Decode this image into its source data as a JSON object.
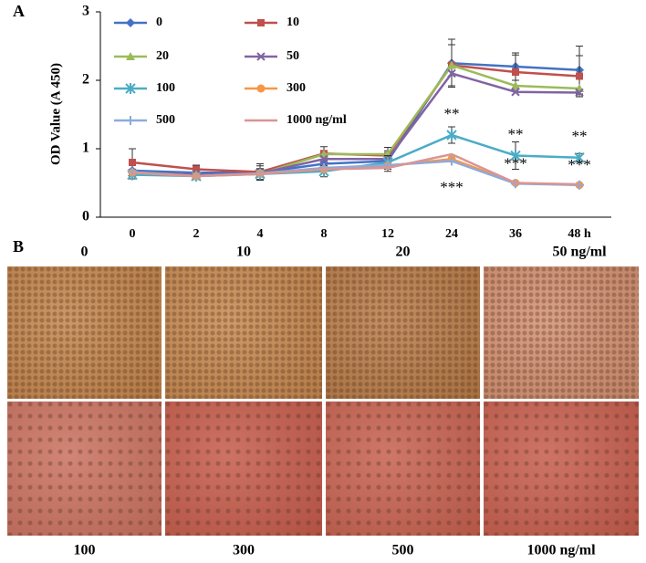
{
  "figure": {
    "panel_a": "A",
    "panel_b": "B"
  },
  "chart_data": {
    "type": "line",
    "y_label": "OD Value (A 450)",
    "categories": [
      "0",
      "2",
      "4",
      "8",
      "12",
      "24",
      "36",
      "48 h"
    ],
    "ylim": [
      0,
      3
    ],
    "yticks": [
      0,
      1,
      2,
      3
    ],
    "series": [
      {
        "name": "0",
        "color": "#4472c4",
        "marker": "diamond",
        "values": [
          0.68,
          0.65,
          0.65,
          0.78,
          0.82,
          2.25,
          2.2,
          2.15
        ],
        "errors": [
          0.08,
          0.06,
          0.1,
          0.1,
          0.15,
          0.35,
          0.2,
          0.35
        ]
      },
      {
        "name": "10",
        "color": "#c0504d",
        "marker": "square",
        "values": [
          0.8,
          0.7,
          0.66,
          0.93,
          0.9,
          2.22,
          2.12,
          2.06
        ],
        "errors": [
          0.2,
          0.06,
          0.12,
          0.1,
          0.12,
          0.3,
          0.25,
          0.3
        ]
      },
      {
        "name": "20",
        "color": "#9bbb59",
        "marker": "triangle",
        "values": [
          0.65,
          0.62,
          0.63,
          0.92,
          0.92,
          2.22,
          1.92,
          1.88
        ]
      },
      {
        "name": "50",
        "color": "#8064a2",
        "marker": "x",
        "values": [
          0.65,
          0.62,
          0.64,
          0.85,
          0.85,
          2.1,
          1.83,
          1.82
        ]
      },
      {
        "name": "100",
        "color": "#4bacc6",
        "marker": "star",
        "values": [
          0.62,
          0.6,
          0.63,
          0.67,
          0.8,
          1.2,
          0.9,
          0.87
        ],
        "errors": [
          0.06,
          0.05,
          0.08,
          0.08,
          0.1,
          0.12,
          0.2,
          0.06
        ]
      },
      {
        "name": "300",
        "color": "#f79646",
        "marker": "circle",
        "values": [
          0.65,
          0.6,
          0.64,
          0.7,
          0.75,
          0.85,
          0.5,
          0.47
        ]
      },
      {
        "name": "500",
        "color": "#8eaadb",
        "marker": "plus",
        "values": [
          0.66,
          0.6,
          0.64,
          0.72,
          0.76,
          0.82,
          0.49,
          0.47
        ]
      },
      {
        "name": "1000 ng/ml",
        "color": "#d99594",
        "marker": "none",
        "values": [
          0.65,
          0.6,
          0.63,
          0.7,
          0.72,
          0.92,
          0.5,
          0.48
        ]
      }
    ],
    "annotations": [
      "**",
      "**",
      "**",
      "***",
      "***",
      "***"
    ]
  },
  "images": {
    "top_labels": [
      "0",
      "10",
      "20",
      "50 ng/ml"
    ],
    "bottom_labels": [
      "100",
      "300",
      "500",
      "1000 ng/ml"
    ]
  }
}
